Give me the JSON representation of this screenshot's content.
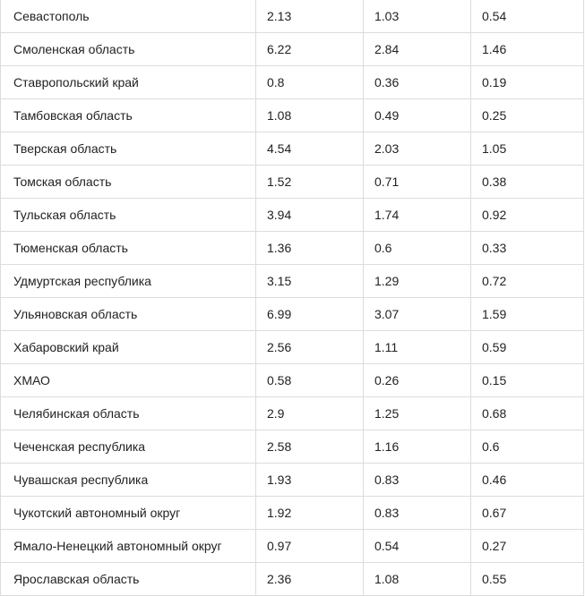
{
  "table": {
    "rows": [
      [
        "Севастополь",
        "2.13",
        "1.03",
        "0.54"
      ],
      [
        "Смоленская область",
        "6.22",
        "2.84",
        "1.46"
      ],
      [
        "Ставропольский край",
        "0.8",
        "0.36",
        "0.19"
      ],
      [
        "Тамбовская область",
        "1.08",
        "0.49",
        "0.25"
      ],
      [
        "Тверская область",
        "4.54",
        "2.03",
        "1.05"
      ],
      [
        "Томская область",
        "1.52",
        "0.71",
        "0.38"
      ],
      [
        "Тульская область",
        "3.94",
        "1.74",
        "0.92"
      ],
      [
        "Тюменская область",
        "1.36",
        "0.6",
        "0.33"
      ],
      [
        "Удмуртская республика",
        "3.15",
        "1.29",
        "0.72"
      ],
      [
        "Ульяновская область",
        "6.99",
        "3.07",
        "1.59"
      ],
      [
        "Хабаровский край",
        "2.56",
        "1.11",
        "0.59"
      ],
      [
        "ХМАО",
        "0.58",
        "0.26",
        "0.15"
      ],
      [
        "Челябинская область",
        "2.9",
        "1.25",
        "0.68"
      ],
      [
        "Чеченская республика",
        "2.58",
        "1.16",
        "0.6"
      ],
      [
        "Чувашская республика",
        "1.93",
        "0.83",
        "0.46"
      ],
      [
        "Чукотский автономный округ",
        "1.92",
        "0.83",
        "0.67"
      ],
      [
        "Ямало-Ненецкий автономный округ",
        "0.97",
        "0.54",
        "0.27"
      ],
      [
        "Ярославская область",
        "2.36",
        "1.08",
        "0.55"
      ]
    ]
  }
}
